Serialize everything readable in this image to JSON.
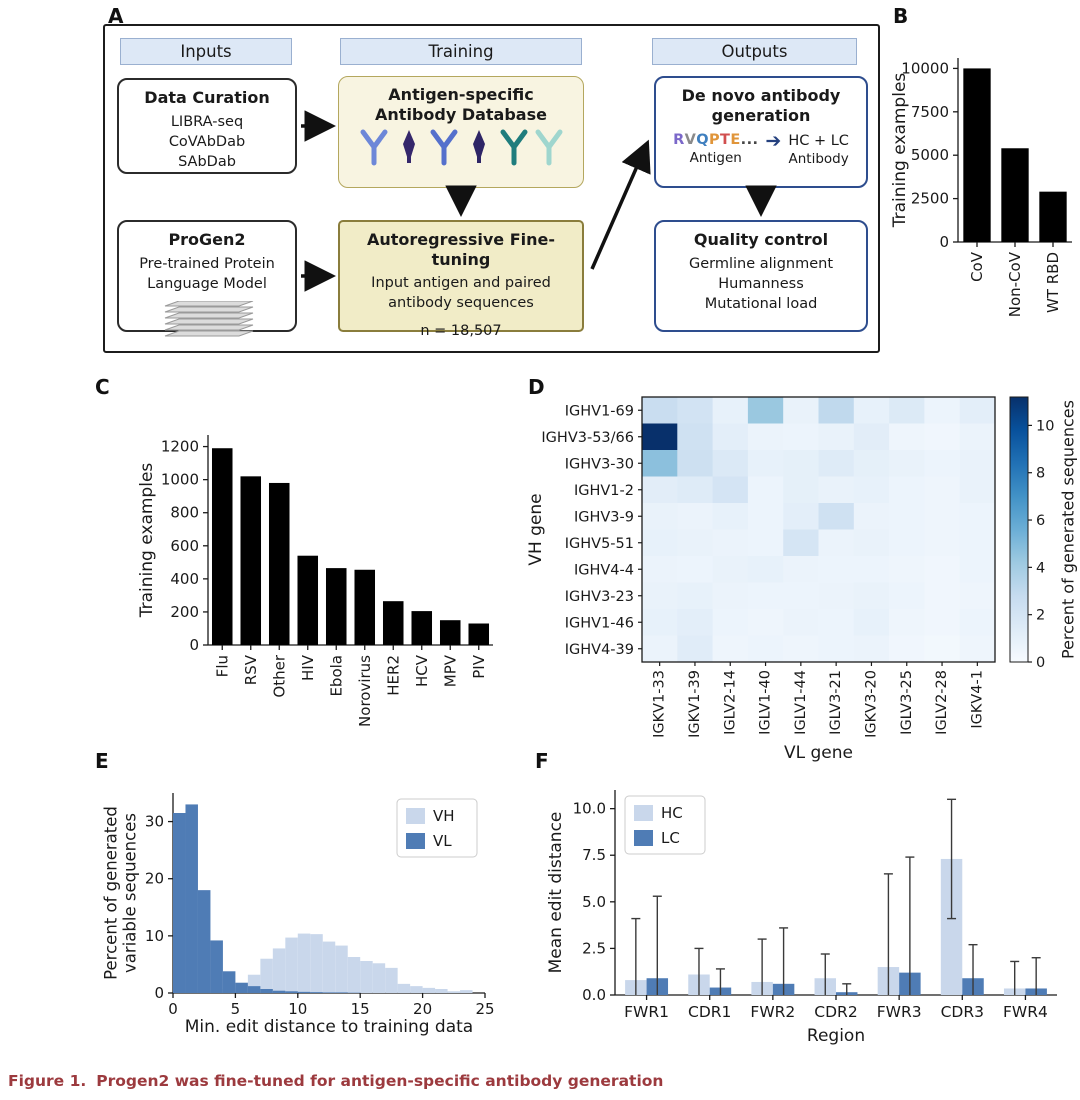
{
  "caption": {
    "label": "Figure 1.",
    "text": "Progen2 was fine-tuned for antigen-specific antibody generation",
    "color": "#9c3a3e"
  },
  "panels": {
    "A": {
      "label": "A",
      "headers": [
        "Inputs",
        "Training",
        "Outputs"
      ],
      "data_curation": {
        "title": "Data Curation",
        "lines": [
          "LIBRA-seq",
          "CoVAbDab",
          "SAbDab"
        ]
      },
      "progen2": {
        "title": "ProGen2",
        "subtitle": "Pre-trained Protein Language Model"
      },
      "database": {
        "title": "Antigen-specific Antibody Database",
        "icons": [
          {
            "shape": "y",
            "color": "#6d87d8"
          },
          {
            "shape": "dart",
            "color": "#35276b"
          },
          {
            "shape": "y",
            "color": "#5570cc"
          },
          {
            "shape": "dart",
            "color": "#2e2566"
          },
          {
            "shape": "y",
            "color": "#1f7d7d"
          },
          {
            "shape": "y",
            "color": "#9fd6ce"
          }
        ]
      },
      "finetuning": {
        "title": "Autoregressive Fine-tuning",
        "line1": "Input antigen and paired antibody sequences",
        "line2": "n = 18,507"
      },
      "denovo": {
        "title": "De novo antibody generation",
        "sequence": [
          {
            "ch": "R",
            "color": "#7b68c9"
          },
          {
            "ch": "V",
            "color": "#8a8a8a"
          },
          {
            "ch": "Q",
            "color": "#3f7fbf"
          },
          {
            "ch": "P",
            "color": "#e0953a"
          },
          {
            "ch": "T",
            "color": "#d14f4f"
          },
          {
            "ch": "E",
            "color": "#e0953a"
          },
          {
            "ch": "...",
            "color": "#444444"
          }
        ],
        "antigen_label": "Antigen",
        "hc_lc": "HC + LC",
        "antibody_label": "Antibody"
      },
      "quality": {
        "title": "Quality control",
        "lines": [
          "Germline alignment",
          "Humanness",
          "Mutational load"
        ]
      }
    },
    "B": {
      "label": "B"
    },
    "C": {
      "label": "C"
    },
    "D": {
      "label": "D"
    },
    "E": {
      "label": "E"
    },
    "F": {
      "label": "F"
    }
  },
  "chart_data": [
    {
      "id": "B",
      "type": "bar",
      "categories": [
        "CoV",
        "Non-CoV",
        "WT RBD"
      ],
      "values": [
        10000,
        5400,
        2900
      ],
      "ylabel": "Training examples",
      "ylim": [
        0,
        10600
      ],
      "yticks": [
        0,
        2500,
        5000,
        7500,
        10000
      ],
      "ytick_labels": [
        "0",
        "2500",
        "5000",
        "7500",
        "10000"
      ],
      "bar_color": "#000000"
    },
    {
      "id": "C",
      "type": "bar",
      "categories": [
        "Flu",
        "RSV",
        "Other",
        "HIV",
        "Ebola",
        "Norovirus",
        "HER2",
        "HCV",
        "MPV",
        "PIV"
      ],
      "values": [
        1190,
        1020,
        980,
        540,
        465,
        455,
        265,
        205,
        150,
        130
      ],
      "ylabel": "Training examples",
      "ylim": [
        0,
        1270
      ],
      "yticks": [
        0,
        200,
        400,
        600,
        800,
        1000,
        1200
      ],
      "ytick_labels": [
        "0",
        "200",
        "400",
        "600",
        "800",
        "1000",
        "1200"
      ],
      "bar_color": "#000000"
    },
    {
      "id": "D",
      "type": "heatmap",
      "rows": [
        "IGHV1-69",
        "IGHV3-53/66",
        "IGHV3-30",
        "IGHV1-2",
        "IGHV3-9",
        "IGHV5-51",
        "IGHV4-4",
        "IGHV3-23",
        "IGHV1-46",
        "IGHV4-39"
      ],
      "cols": [
        "IGKV1-33",
        "IGKV1-39",
        "IGLV2-14",
        "IGLV1-40",
        "IGLV1-44",
        "IGLV3-21",
        "IGKV3-20",
        "IGLV3-25",
        "IGLV2-28",
        "IGKV4-1"
      ],
      "values": [
        [
          2.6,
          2.1,
          0.9,
          4.3,
          0.8,
          3.0,
          0.9,
          1.5,
          0.6,
          1.1
        ],
        [
          11.2,
          2.3,
          1.1,
          0.7,
          0.6,
          0.8,
          1.2,
          0.5,
          0.4,
          0.7
        ],
        [
          4.7,
          2.4,
          1.6,
          0.9,
          1.0,
          1.4,
          1.0,
          0.8,
          0.6,
          0.8
        ],
        [
          1.2,
          1.4,
          2.0,
          0.6,
          1.0,
          0.8,
          0.9,
          0.6,
          0.5,
          0.8
        ],
        [
          0.8,
          0.7,
          0.9,
          0.6,
          1.1,
          2.3,
          0.7,
          0.6,
          0.5,
          0.6
        ],
        [
          0.9,
          0.8,
          0.7,
          0.6,
          1.9,
          0.7,
          0.8,
          0.6,
          0.5,
          0.6
        ],
        [
          0.7,
          0.6,
          0.8,
          0.9,
          0.7,
          0.6,
          0.6,
          0.5,
          0.4,
          0.6
        ],
        [
          0.8,
          0.9,
          0.7,
          0.6,
          0.6,
          0.7,
          0.8,
          0.6,
          0.4,
          0.5
        ],
        [
          0.9,
          1.1,
          0.6,
          0.5,
          0.7,
          0.6,
          0.9,
          0.5,
          0.4,
          0.6
        ],
        [
          0.7,
          1.3,
          0.5,
          0.6,
          0.5,
          0.6,
          0.7,
          0.4,
          0.3,
          0.5
        ]
      ],
      "vmax": 11.2,
      "ylabel": "VH gene",
      "xlabel": "VL gene",
      "cbar_label": "Percent of generated sequences",
      "cbar_ticks": [
        0,
        2,
        4,
        6,
        8,
        10
      ],
      "cbar_tick_labels": [
        "0",
        "2",
        "4",
        "6",
        "8",
        "10"
      ]
    },
    {
      "id": "E",
      "type": "histogram",
      "bin_start": 0,
      "bin_width": 1,
      "series": [
        {
          "name": "VH",
          "color": "#c9d7eb",
          "values": [
            0.3,
            0.4,
            0.5,
            0.7,
            0.9,
            1.4,
            3.2,
            6.0,
            7.8,
            9.7,
            10.4,
            10.3,
            9.0,
            8.3,
            6.3,
            5.6,
            5.2,
            4.4,
            1.6,
            1.2,
            0.9,
            0.7,
            0.3,
            0.5
          ]
        },
        {
          "name": "VL",
          "color": "#4f7cb5",
          "values": [
            31.5,
            33.0,
            18.0,
            9.2,
            3.8,
            1.8,
            1.2,
            0.7,
            0.4,
            0.3,
            0.2,
            0.15,
            0.1,
            0.1,
            0.05,
            0,
            0,
            0,
            0,
            0,
            0,
            0,
            0,
            0
          ]
        }
      ],
      "xlabel": "Min. edit distance to training data",
      "ylabel_lines": [
        "Percent of generated",
        "variable sequences"
      ],
      "xlim": [
        0,
        25
      ],
      "ylim": [
        0,
        35
      ],
      "xticks": [
        0,
        5,
        10,
        15,
        20,
        25
      ],
      "xtick_labels": [
        "0",
        "5",
        "10",
        "15",
        "20",
        "25"
      ],
      "yticks": [
        0,
        10,
        20,
        30
      ],
      "ytick_labels": [
        "0",
        "10",
        "20",
        "30"
      ],
      "legend": [
        "VH",
        "VL"
      ]
    },
    {
      "id": "F",
      "type": "grouped_bar",
      "categories": [
        "FWR1",
        "CDR1",
        "FWR2",
        "CDR2",
        "FWR3",
        "CDR3",
        "FWR4"
      ],
      "series": [
        {
          "name": "HC",
          "color": "#c9d7eb",
          "values": [
            0.8,
            1.1,
            0.7,
            0.9,
            1.5,
            7.3,
            0.35
          ],
          "err": [
            3.3,
            1.4,
            2.3,
            1.3,
            5.0,
            3.2,
            1.45
          ]
        },
        {
          "name": "LC",
          "color": "#4f7cb5",
          "values": [
            0.9,
            0.4,
            0.6,
            0.15,
            1.2,
            0.9,
            0.35
          ],
          "err": [
            4.4,
            1.0,
            3.0,
            0.45,
            6.2,
            1.8,
            1.65
          ]
        }
      ],
      "xlabel": "Region",
      "ylabel": "Mean edit distance",
      "ylim": [
        0,
        11
      ],
      "yticks": [
        0,
        2.5,
        5,
        7.5,
        10
      ],
      "ytick_labels": [
        "0.0",
        "2.5",
        "5.0",
        "7.5",
        "10.0"
      ],
      "legend": [
        "HC",
        "LC"
      ]
    }
  ]
}
